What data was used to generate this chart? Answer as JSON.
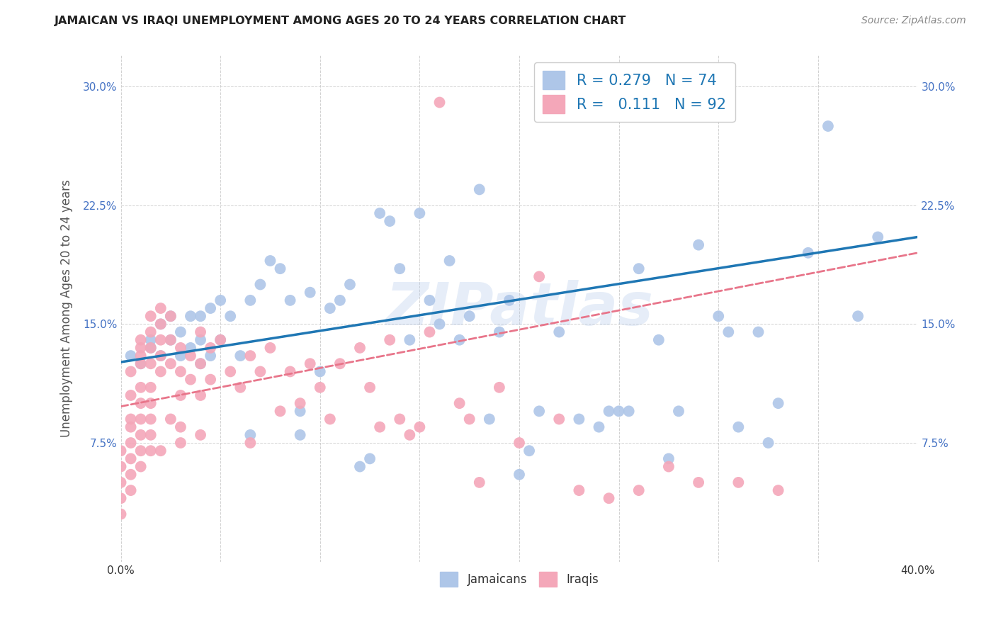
{
  "title": "JAMAICAN VS IRAQI UNEMPLOYMENT AMONG AGES 20 TO 24 YEARS CORRELATION CHART",
  "source": "Source: ZipAtlas.com",
  "ylabel": "Unemployment Among Ages 20 to 24 years",
  "xlabel": "",
  "xlim": [
    0.0,
    0.4
  ],
  "ylim": [
    0.0,
    0.32
  ],
  "xticks": [
    0.0,
    0.05,
    0.1,
    0.15,
    0.2,
    0.25,
    0.3,
    0.35,
    0.4
  ],
  "yticks": [
    0.0,
    0.075,
    0.15,
    0.225,
    0.3
  ],
  "ytick_labels": [
    "",
    "7.5%",
    "15.0%",
    "22.5%",
    "30.0%"
  ],
  "xtick_labels": [
    "0.0%",
    "",
    "",
    "",
    "",
    "",
    "",
    "",
    "40.0%"
  ],
  "watermark": "ZIPatlas",
  "jamaican_color": "#aec6e8",
  "iraqi_color": "#f4a7b9",
  "jamaican_line_color": "#1f77b4",
  "iraqi_line_color": "#e8758a",
  "legend_R1": "0.279",
  "legend_N1": "74",
  "legend_R2": "0.111",
  "legend_N2": "92",
  "jamaican_x": [
    0.005,
    0.01,
    0.015,
    0.015,
    0.02,
    0.02,
    0.025,
    0.025,
    0.03,
    0.03,
    0.035,
    0.035,
    0.04,
    0.04,
    0.04,
    0.045,
    0.045,
    0.05,
    0.05,
    0.055,
    0.06,
    0.065,
    0.065,
    0.07,
    0.075,
    0.08,
    0.085,
    0.09,
    0.09,
    0.095,
    0.1,
    0.105,
    0.11,
    0.115,
    0.12,
    0.125,
    0.13,
    0.135,
    0.14,
    0.145,
    0.15,
    0.155,
    0.16,
    0.165,
    0.17,
    0.175,
    0.18,
    0.185,
    0.19,
    0.195,
    0.2,
    0.205,
    0.21,
    0.22,
    0.23,
    0.24,
    0.245,
    0.25,
    0.255,
    0.26,
    0.27,
    0.275,
    0.28,
    0.29,
    0.3,
    0.305,
    0.31,
    0.32,
    0.325,
    0.33,
    0.345,
    0.355,
    0.37,
    0.38
  ],
  "jamaican_y": [
    0.13,
    0.125,
    0.135,
    0.14,
    0.13,
    0.15,
    0.14,
    0.155,
    0.13,
    0.145,
    0.135,
    0.155,
    0.125,
    0.14,
    0.155,
    0.13,
    0.16,
    0.14,
    0.165,
    0.155,
    0.13,
    0.08,
    0.165,
    0.175,
    0.19,
    0.185,
    0.165,
    0.08,
    0.095,
    0.17,
    0.12,
    0.16,
    0.165,
    0.175,
    0.06,
    0.065,
    0.22,
    0.215,
    0.185,
    0.14,
    0.22,
    0.165,
    0.15,
    0.19,
    0.14,
    0.155,
    0.235,
    0.09,
    0.145,
    0.165,
    0.055,
    0.07,
    0.095,
    0.145,
    0.09,
    0.085,
    0.095,
    0.095,
    0.095,
    0.185,
    0.14,
    0.065,
    0.095,
    0.2,
    0.155,
    0.145,
    0.085,
    0.145,
    0.075,
    0.1,
    0.195,
    0.275,
    0.155,
    0.205
  ],
  "iraqi_x": [
    0.0,
    0.0,
    0.0,
    0.0,
    0.0,
    0.005,
    0.005,
    0.005,
    0.005,
    0.005,
    0.005,
    0.005,
    0.005,
    0.01,
    0.01,
    0.01,
    0.01,
    0.01,
    0.01,
    0.01,
    0.01,
    0.01,
    0.01,
    0.015,
    0.015,
    0.015,
    0.015,
    0.015,
    0.015,
    0.015,
    0.015,
    0.015,
    0.02,
    0.02,
    0.02,
    0.02,
    0.02,
    0.02,
    0.025,
    0.025,
    0.025,
    0.025,
    0.03,
    0.03,
    0.03,
    0.03,
    0.03,
    0.035,
    0.035,
    0.04,
    0.04,
    0.04,
    0.04,
    0.045,
    0.045,
    0.05,
    0.055,
    0.06,
    0.065,
    0.065,
    0.07,
    0.075,
    0.08,
    0.085,
    0.09,
    0.095,
    0.1,
    0.105,
    0.11,
    0.12,
    0.125,
    0.13,
    0.135,
    0.14,
    0.145,
    0.15,
    0.155,
    0.16,
    0.17,
    0.175,
    0.18,
    0.19,
    0.2,
    0.21,
    0.22,
    0.23,
    0.245,
    0.26,
    0.275,
    0.29,
    0.31,
    0.33
  ],
  "iraqi_y": [
    0.06,
    0.04,
    0.07,
    0.05,
    0.03,
    0.09,
    0.085,
    0.075,
    0.065,
    0.055,
    0.045,
    0.12,
    0.105,
    0.14,
    0.125,
    0.11,
    0.1,
    0.09,
    0.08,
    0.07,
    0.06,
    0.135,
    0.13,
    0.155,
    0.145,
    0.135,
    0.125,
    0.11,
    0.1,
    0.09,
    0.08,
    0.07,
    0.16,
    0.15,
    0.14,
    0.13,
    0.12,
    0.07,
    0.155,
    0.14,
    0.125,
    0.09,
    0.135,
    0.12,
    0.105,
    0.085,
    0.075,
    0.13,
    0.115,
    0.145,
    0.125,
    0.105,
    0.08,
    0.135,
    0.115,
    0.14,
    0.12,
    0.11,
    0.13,
    0.075,
    0.12,
    0.135,
    0.095,
    0.12,
    0.1,
    0.125,
    0.11,
    0.09,
    0.125,
    0.135,
    0.11,
    0.085,
    0.14,
    0.09,
    0.08,
    0.085,
    0.145,
    0.29,
    0.1,
    0.09,
    0.05,
    0.11,
    0.075,
    0.18,
    0.09,
    0.045,
    0.04,
    0.045,
    0.06,
    0.05,
    0.05,
    0.045
  ]
}
